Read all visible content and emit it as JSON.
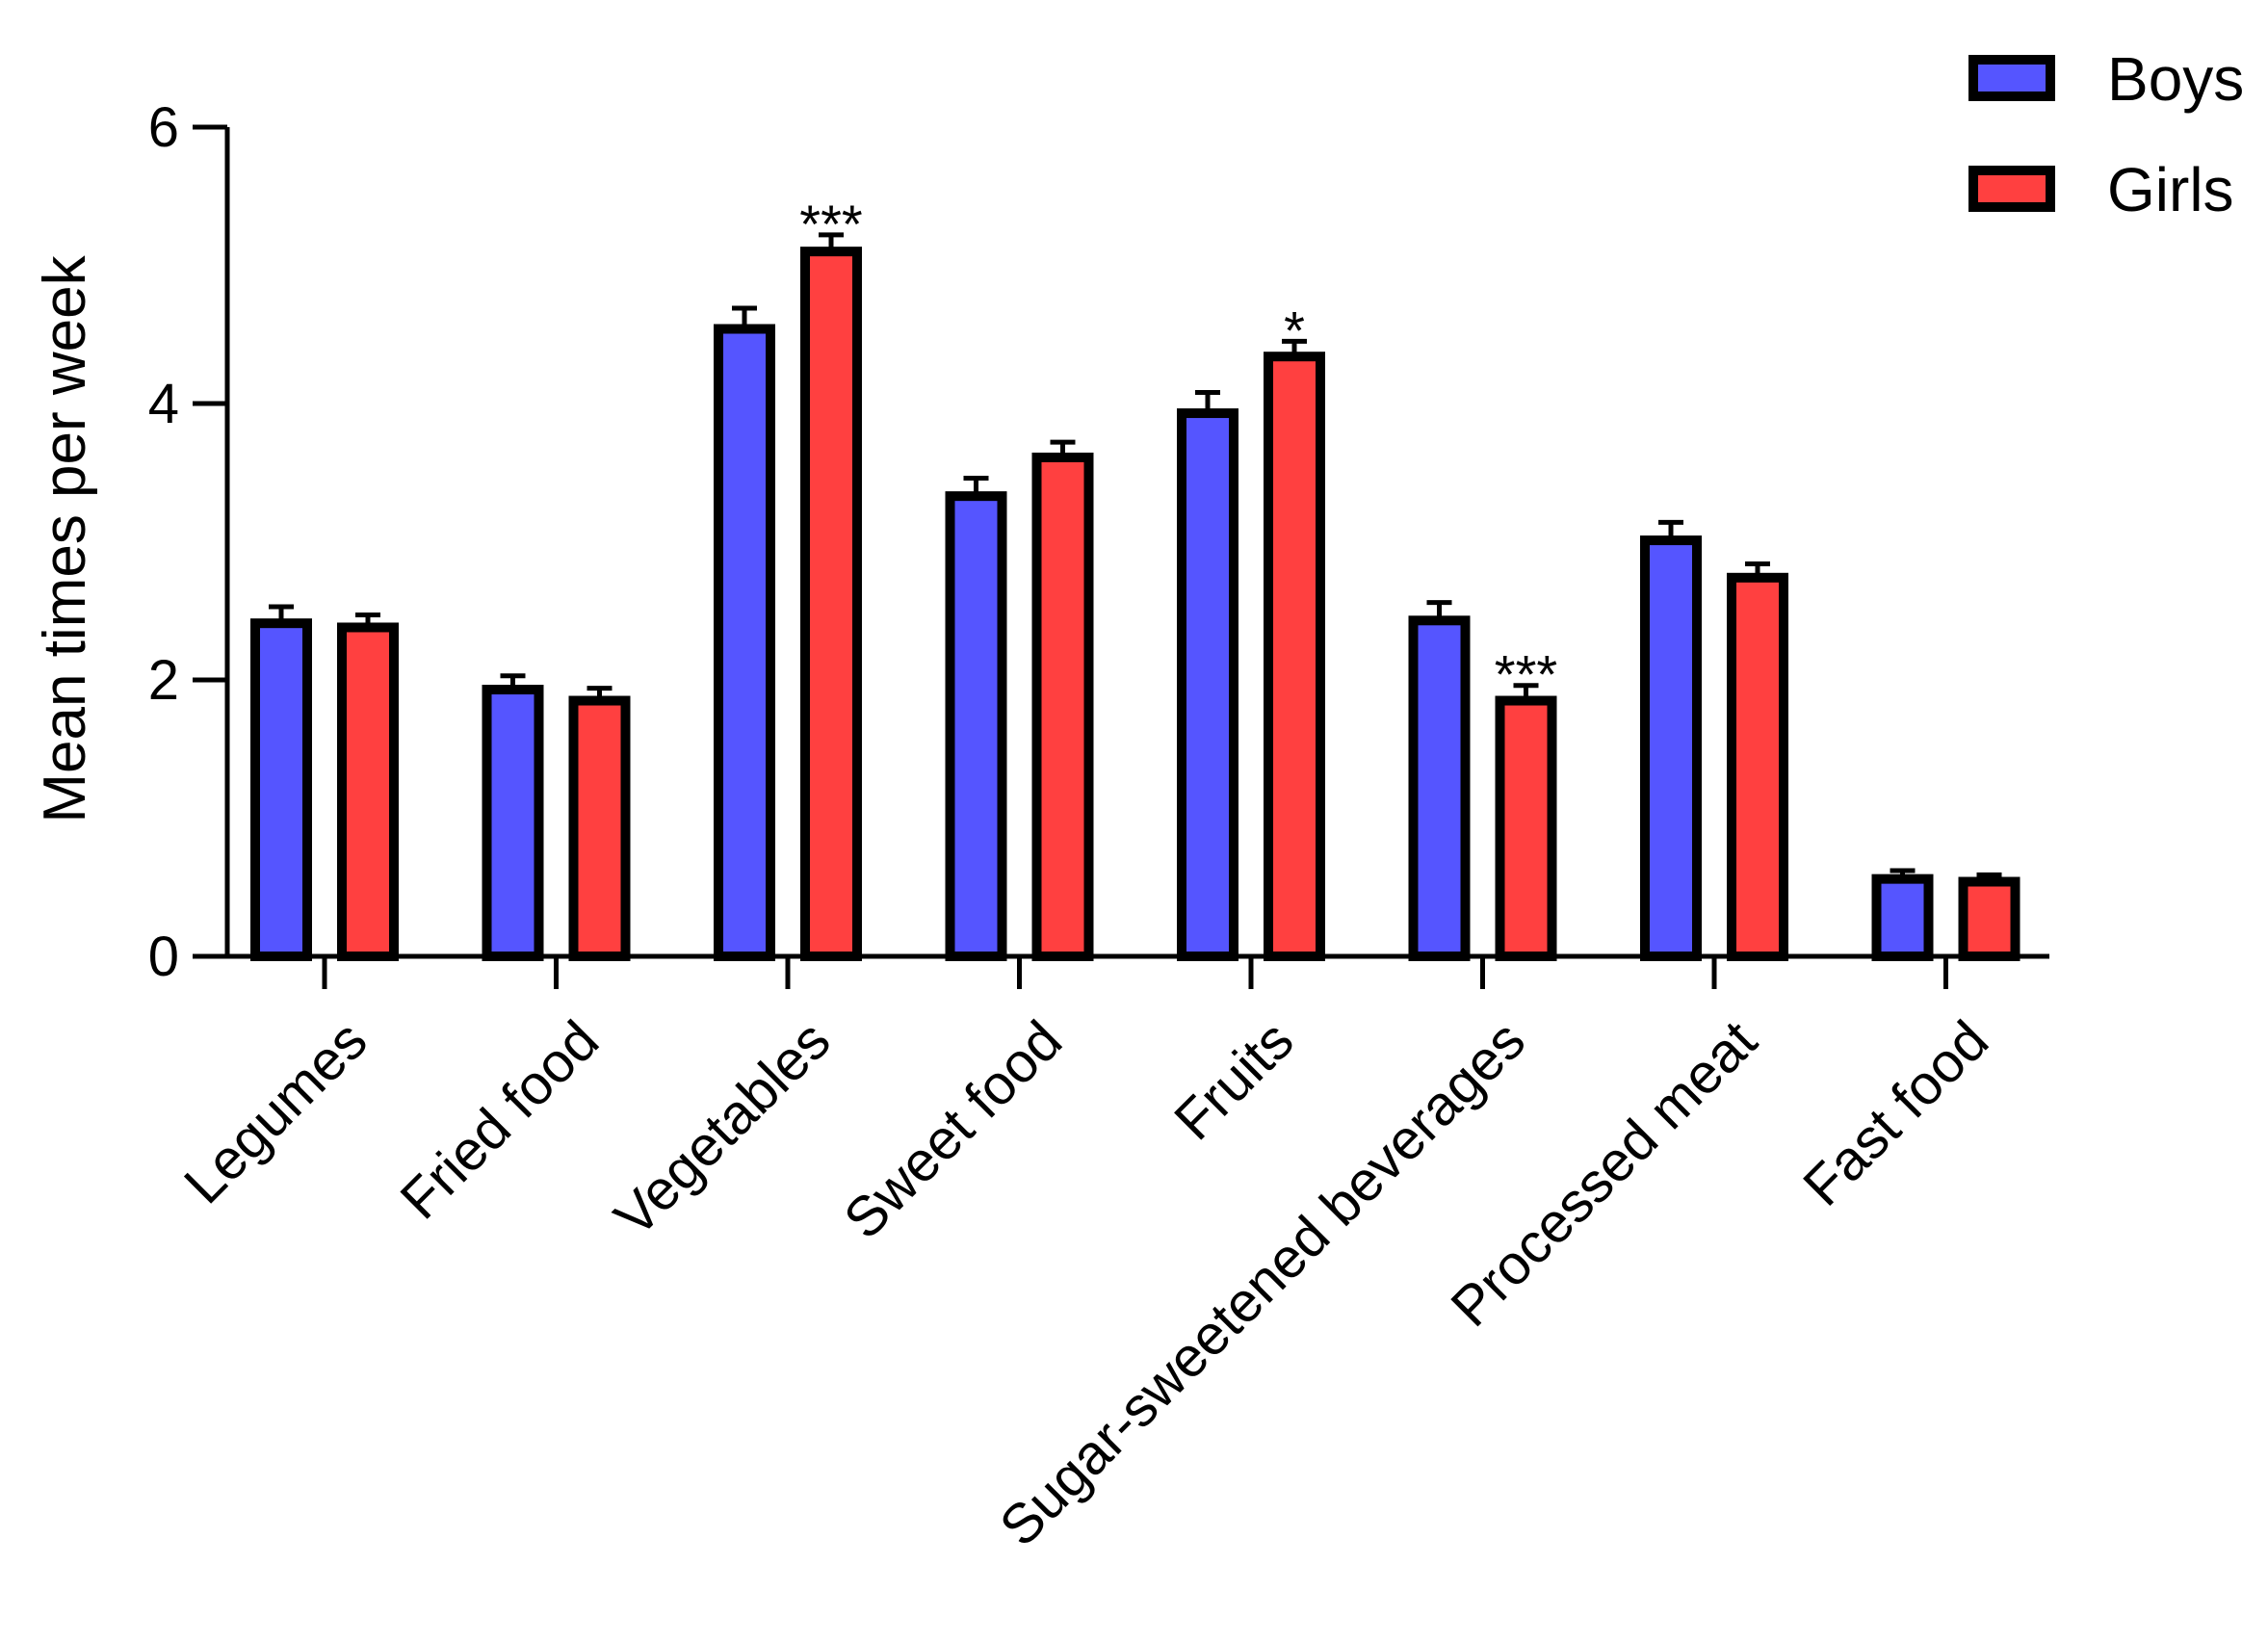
{
  "chart_data": {
    "type": "bar",
    "title": "",
    "xlabel": "",
    "ylabel": "Mean times per week",
    "ylim": [
      0,
      6
    ],
    "yticks": [
      0,
      2,
      4,
      6
    ],
    "categories": [
      "Legumes",
      "Fried food",
      "Vegetables",
      "Sweet food",
      "Fruits",
      "Sugar-sweetened beverages",
      "Processed meat",
      "Fast food"
    ],
    "series": [
      {
        "name": "Boys",
        "color": "#5555ff",
        "values": [
          2.41,
          1.93,
          4.54,
          3.33,
          3.93,
          2.43,
          3.01,
          0.56
        ],
        "errors": [
          0.12,
          0.1,
          0.15,
          0.13,
          0.15,
          0.13,
          0.13,
          0.06
        ]
      },
      {
        "name": "Girls",
        "color": "#ff4040",
        "values": [
          2.38,
          1.85,
          5.1,
          3.61,
          4.34,
          1.85,
          2.74,
          0.54
        ],
        "errors": [
          0.09,
          0.09,
          0.12,
          0.11,
          0.11,
          0.11,
          0.1,
          0.05
        ]
      }
    ],
    "annotations": [
      {
        "category": "Vegetables",
        "series": "Girls",
        "text": "***"
      },
      {
        "category": "Fruits",
        "series": "Girls",
        "text": "*"
      },
      {
        "category": "Sugar-sweetened beverages",
        "series": "Girls",
        "text": "***"
      }
    ],
    "legend": "top-right",
    "grid": false
  }
}
